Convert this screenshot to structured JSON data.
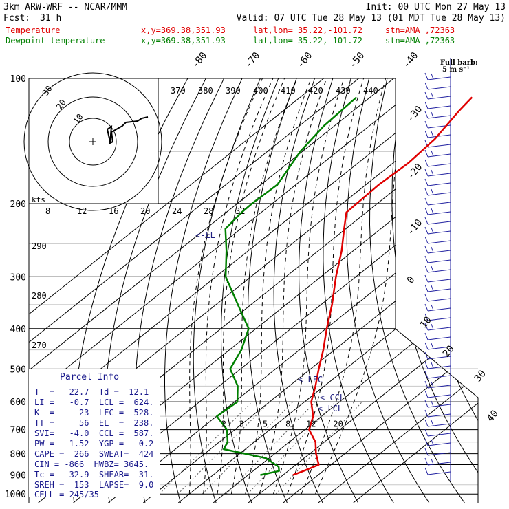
{
  "header": {
    "model": "3km ARW-WRF -- NCAR/MMM",
    "init": "Init: 00 UTC Mon 27 May 13",
    "fcst_label": "Fcst:",
    "fcst_value": "31 h",
    "valid": "Valid: 07 UTC Tue 28 May 13 (01 MDT Tue 28 May 13)"
  },
  "legend": [
    {
      "label": "Temperature",
      "coords": "x,y=369.38,351.93",
      "latlon": "lat,lon= 35.22,-101.72",
      "stn": "stn=AMA ,72363",
      "color": "#e00000"
    },
    {
      "label": "Dewpoint temperature",
      "coords": "x,y=369.38,351.93",
      "latlon": "lat,lon= 35.22,-101.72",
      "stn": "stn=AMA ,72363",
      "color": "#008000"
    }
  ],
  "barb_legend": [
    "Full barb:",
    "5 m s⁻¹"
  ],
  "parcel_info": {
    "title": "Parcel Info",
    "rows": [
      "T  =   22.7  Td =  12.1",
      "LI =   -0.7  LCL =  624.",
      "K  =     23  LFC =  528.",
      "TT =     56  EL  =  238.",
      "SVI=   -4.0  CCL =  587.",
      "PW =   1.52  YGP =   0.2",
      "CAPE =  266  SWEAT=  424",
      "CIN = -866  HWBZ= 3645.",
      "Tc =   32.9  SHEAR=  31.",
      "SREH =  153  LAPSE=  9.0",
      "CELL = 245/35"
    ]
  },
  "level_marks": [
    "<-EL",
    "<-LFC",
    "<-CCL",
    "<-LCL"
  ],
  "hodograph": {
    "rings": [
      "30",
      "20",
      "10"
    ],
    "axis_unit": "kts",
    "axis_labels": [
      "8",
      "12",
      "16",
      "20",
      "24",
      "28",
      "32"
    ]
  },
  "theta_labels": [
    "370",
    "380",
    "390",
    "400",
    "410",
    "420",
    "430",
    "440"
  ],
  "theta_dry_labels": [
    "290",
    "280",
    "270"
  ],
  "mixing_labels": [
    "2",
    "3",
    "5",
    "8",
    "12",
    "20"
  ],
  "colors": {
    "temperature": "#e00000",
    "dewpoint": "#008000",
    "isotherm": "#000000",
    "wind": "#2020a0"
  },
  "chart_data": {
    "type": "line",
    "title": "",
    "ylabel": "",
    "xlabel": "",
    "y_scale": "log-pressure",
    "y_ticks": [
      100,
      200,
      300,
      400,
      500,
      600,
      700,
      800,
      900,
      1000
    ],
    "isotherm_labels": [
      -80,
      -70,
      -60,
      -50,
      -40,
      -30,
      -20,
      -10,
      0,
      10,
      20,
      30,
      40
    ],
    "series": [
      {
        "name": "Temperature",
        "points": [
          [
            111,
            -60.9
          ],
          [
            120,
            -59.7
          ],
          [
            140,
            -56.6
          ],
          [
            160,
            -55.6
          ],
          [
            180,
            -56.3
          ],
          [
            200,
            -55.9
          ],
          [
            210,
            -55.7
          ],
          [
            230,
            -50.5
          ],
          [
            260,
            -43.3
          ],
          [
            300,
            -35.7
          ],
          [
            350,
            -26.9
          ],
          [
            400,
            -19.8
          ],
          [
            450,
            -13.2
          ],
          [
            500,
            -7.7
          ],
          [
            550,
            -2.5
          ],
          [
            600,
            1.9
          ],
          [
            650,
            7.6
          ],
          [
            700,
            11.2
          ],
          [
            750,
            17.5
          ],
          [
            800,
            21.8
          ],
          [
            850,
            26.5
          ],
          [
            880,
            24.4
          ],
          [
            900,
            22.8
          ]
        ]
      },
      {
        "name": "Dewpoint temperature",
        "points": [
          [
            111,
            -93.9
          ],
          [
            130,
            -93.0
          ],
          [
            150,
            -90.6
          ],
          [
            180,
            -85.3
          ],
          [
            200,
            -85.8
          ],
          [
            210,
            -85.6
          ],
          [
            230,
            -84.4
          ],
          [
            260,
            -76.2
          ],
          [
            300,
            -67.2
          ],
          [
            350,
            -53.8
          ],
          [
            400,
            -42.1
          ],
          [
            450,
            -36.6
          ],
          [
            500,
            -33.0
          ],
          [
            550,
            -24.7
          ],
          [
            600,
            -19.2
          ],
          [
            650,
            -19.9
          ],
          [
            700,
            -12.2
          ],
          [
            750,
            -7.6
          ],
          [
            780,
            -6.2
          ],
          [
            820,
            9.1
          ],
          [
            860,
            15.8
          ],
          [
            880,
            17.4
          ],
          [
            900,
            13.5
          ]
        ]
      }
    ]
  }
}
